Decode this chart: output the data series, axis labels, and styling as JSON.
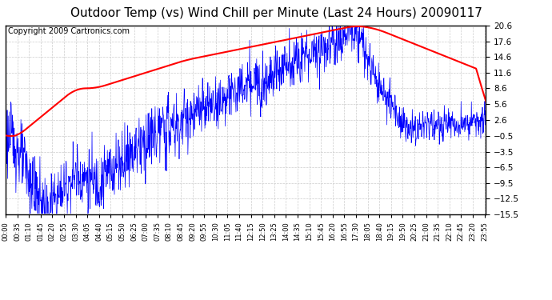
{
  "title": "Outdoor Temp (vs) Wind Chill per Minute (Last 24 Hours) 20090117",
  "copyright": "Copyright 2009 Cartronics.com",
  "yticks": [
    20.6,
    17.6,
    14.6,
    11.6,
    8.6,
    5.6,
    2.6,
    -0.5,
    -3.5,
    -6.5,
    -9.5,
    -12.5,
    -15.5
  ],
  "ymin": -15.5,
  "ymax": 20.6,
  "bg_color": "#ffffff",
  "grid_color": "#cccccc",
  "line_color_blue": "#0000ff",
  "line_color_red": "#ff0000",
  "title_fontsize": 11,
  "copyright_fontsize": 7
}
